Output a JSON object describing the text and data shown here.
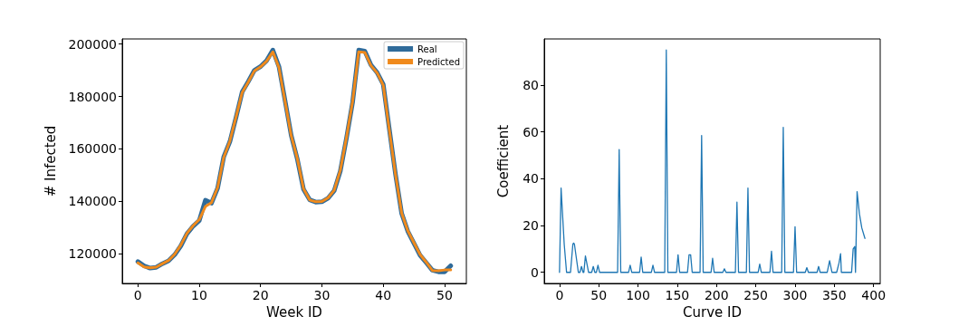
{
  "chart_data": [
    {
      "type": "line",
      "xlabel": "Week ID",
      "ylabel": "# Infected",
      "x": [
        0,
        1,
        2,
        3,
        4,
        5,
        6,
        7,
        8,
        9,
        10,
        11,
        12,
        13,
        14,
        15,
        16,
        17,
        18,
        19,
        20,
        21,
        22,
        23,
        24,
        25,
        26,
        27,
        28,
        29,
        30,
        31,
        32,
        33,
        34,
        35,
        36,
        37,
        38,
        39,
        40,
        41,
        42,
        43,
        44,
        45,
        46,
        47,
        48,
        49,
        50,
        51
      ],
      "series": [
        {
          "name": "Real",
          "color": "#2f6b9a",
          "values": [
            117000,
            115400,
            114500,
            114800,
            116200,
            117300,
            119600,
            123000,
            127600,
            130500,
            132600,
            140400,
            139300,
            145000,
            157000,
            162800,
            172000,
            181700,
            185700,
            190000,
            191400,
            193700,
            197700,
            191400,
            178300,
            165100,
            156000,
            144600,
            140600,
            139700,
            139800,
            141200,
            144000,
            151500,
            164000,
            177700,
            197700,
            197300,
            192000,
            189100,
            184600,
            167400,
            150300,
            135400,
            128600,
            124000,
            119400,
            116600,
            113700,
            113100,
            113100,
            115400
          ]
        },
        {
          "name": "Predicted",
          "color": "#f08a1c",
          "values": [
            116500,
            115000,
            114600,
            114900,
            116200,
            117400,
            119800,
            123300,
            127800,
            130700,
            133000,
            138000,
            139500,
            145300,
            156800,
            163000,
            172200,
            181500,
            185500,
            189800,
            191300,
            193500,
            197000,
            191000,
            178000,
            165000,
            156200,
            144800,
            140500,
            139800,
            139900,
            141300,
            144200,
            151800,
            164300,
            178000,
            197000,
            196800,
            191800,
            189000,
            184300,
            167000,
            150200,
            135500,
            128800,
            124200,
            119700,
            116800,
            113600,
            113500,
            113800,
            113800
          ]
        }
      ],
      "xlim": [
        -2.55,
        53.55
      ],
      "ylim": [
        108660,
        201940
      ],
      "xticks": [
        0,
        10,
        20,
        30,
        40,
        50
      ],
      "yticks": [
        120000,
        140000,
        160000,
        180000,
        200000
      ],
      "grid": false,
      "legend": "top right",
      "line_style": "solid",
      "marker": "none"
    },
    {
      "type": "line",
      "xlabel": "Curve ID",
      "ylabel": "Coefficient",
      "series": [
        {
          "color": "#1f77b4",
          "x": [
            0,
            2,
            4,
            6,
            9,
            14,
            17,
            18,
            19,
            24,
            26,
            28,
            30,
            31,
            33,
            37,
            41,
            43,
            45,
            47,
            49,
            51,
            74,
            76,
            78,
            88,
            90,
            92,
            102,
            104,
            106,
            117,
            119,
            121,
            134,
            136,
            138,
            149,
            151,
            153,
            163,
            165,
            167,
            169,
            179,
            181,
            183,
            193,
            195,
            197,
            208,
            210,
            212,
            224,
            226,
            228,
            238,
            240,
            242,
            253,
            255,
            257,
            268,
            270,
            272,
            283,
            285,
            287,
            298,
            300,
            302,
            313,
            315,
            317,
            328,
            330,
            332,
            341,
            344,
            347,
            353,
            356,
            358,
            359,
            372,
            374,
            376,
            377,
            379,
            382,
            385,
            389
          ],
          "values": [
            0,
            36,
            24,
            12,
            0,
            0,
            12,
            12.5,
            12,
            0,
            0,
            2.5,
            0,
            0,
            7,
            0,
            0,
            2.5,
            0,
            0,
            3,
            0,
            0,
            52.5,
            0,
            0,
            3,
            0,
            0,
            6.5,
            0,
            0,
            3,
            0,
            0,
            95,
            0,
            0,
            7.5,
            0,
            0,
            7.5,
            7.5,
            0,
            0,
            58.5,
            0,
            0,
            6,
            0,
            0,
            1.5,
            0,
            0,
            30,
            0,
            0,
            36,
            0,
            0,
            3.5,
            0,
            0,
            9,
            0,
            0,
            62,
            0,
            0,
            19.5,
            0,
            0,
            2,
            0,
            0,
            2.5,
            0,
            0,
            5,
            0,
            0,
            4,
            8,
            0,
            0,
            10,
            11,
            0,
            34.5,
            25,
            19,
            14.5
          ]
        }
      ],
      "xlim": [
        -19.45,
        408.45
      ],
      "ylim": [
        -4.75,
        99.75
      ],
      "xticks": [
        0,
        50,
        100,
        150,
        200,
        250,
        300,
        350,
        400
      ],
      "yticks": [
        0,
        20,
        40,
        60,
        80
      ],
      "grid": false,
      "legend": false,
      "line_style": "solid",
      "marker": "none"
    }
  ]
}
